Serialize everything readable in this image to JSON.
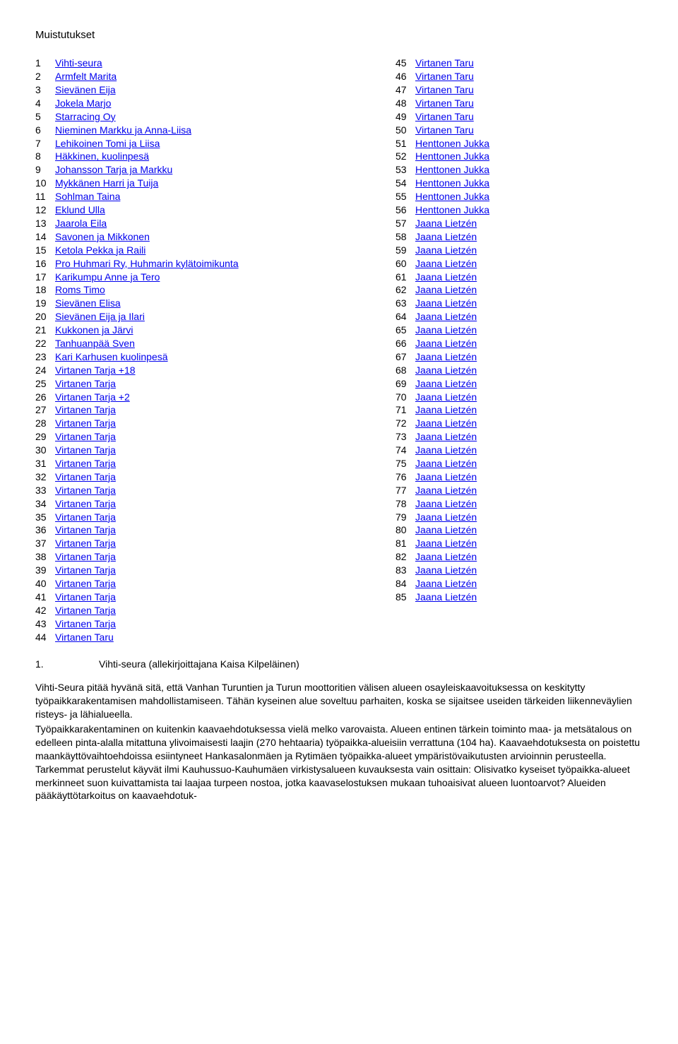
{
  "heading": "Muistutukset",
  "left_column": [
    {
      "n": "1",
      "name": "Vihti-seura"
    },
    {
      "n": "2",
      "name": "Armfelt Marita"
    },
    {
      "n": "3",
      "name": "Sievänen Eija"
    },
    {
      "n": "4",
      "name": "Jokela Marjo"
    },
    {
      "n": "5",
      "name": "Starracing Oy"
    },
    {
      "n": "6",
      "name": "Nieminen Markku ja Anna-Liisa"
    },
    {
      "n": "7",
      "name": "Lehikoinen Tomi ja Liisa"
    },
    {
      "n": "8",
      "name": "Häkkinen, kuolinpesä"
    },
    {
      "n": "9",
      "name": "Johansson Tarja ja Markku"
    },
    {
      "n": "10",
      "name": "Mykkänen Harri ja Tuija"
    },
    {
      "n": "11",
      "name": "Sohlman Taina"
    },
    {
      "n": "12",
      "name": "Eklund Ulla"
    },
    {
      "n": "13",
      "name": "Jaarola Eila"
    },
    {
      "n": "14",
      "name": "Savonen ja Mikkonen"
    },
    {
      "n": "15",
      "name": "Ketola Pekka ja Raili"
    },
    {
      "n": "16",
      "name": "Pro Huhmari Ry, Huhmarin kylätoimikunta"
    },
    {
      "n": "17",
      "name": "Karikumpu Anne ja Tero"
    },
    {
      "n": "18",
      "name": "Roms Timo"
    },
    {
      "n": "19",
      "name": "Sievänen Elisa"
    },
    {
      "n": "20",
      "name": "Sievänen Eija ja Ilari"
    },
    {
      "n": "21",
      "name": "Kukkonen ja Järvi"
    },
    {
      "n": "22",
      "name": "Tanhuanpää Sven"
    },
    {
      "n": "23",
      "name": "Kari Karhusen kuolinpesä"
    },
    {
      "n": "24",
      "name": "Virtanen Tarja +18"
    },
    {
      "n": "25",
      "name": "Virtanen Tarja"
    },
    {
      "n": "26",
      "name": "Virtanen Tarja +2"
    },
    {
      "n": "27",
      "name": "Virtanen Tarja"
    },
    {
      "n": "28",
      "name": "Virtanen Tarja"
    },
    {
      "n": "29",
      "name": "Virtanen Tarja"
    },
    {
      "n": "30",
      "name": "Virtanen Tarja"
    },
    {
      "n": "31",
      "name": "Virtanen Tarja"
    },
    {
      "n": "32",
      "name": "Virtanen Tarja"
    },
    {
      "n": "33",
      "name": "Virtanen Tarja"
    },
    {
      "n": "34",
      "name": "Virtanen Tarja"
    },
    {
      "n": "35",
      "name": "Virtanen Tarja"
    },
    {
      "n": "36",
      "name": "Virtanen Tarja"
    },
    {
      "n": "37",
      "name": "Virtanen Tarja"
    },
    {
      "n": "38",
      "name": "Virtanen Tarja"
    },
    {
      "n": "39",
      "name": "Virtanen Tarja"
    },
    {
      "n": "40",
      "name": "Virtanen Tarja"
    },
    {
      "n": "41",
      "name": "Virtanen Tarja"
    },
    {
      "n": "42",
      "name": "Virtanen Tarja"
    },
    {
      "n": "43",
      "name": "Virtanen Tarja"
    },
    {
      "n": "44",
      "name": "Virtanen Taru"
    }
  ],
  "right_column": [
    {
      "n": "45",
      "name": "Virtanen Taru"
    },
    {
      "n": "46",
      "name": "Virtanen Taru"
    },
    {
      "n": "47",
      "name": "Virtanen Taru"
    },
    {
      "n": "48",
      "name": "Virtanen Taru"
    },
    {
      "n": "49",
      "name": "Virtanen Taru"
    },
    {
      "n": "50",
      "name": "Virtanen Taru"
    },
    {
      "n": "51",
      "name": "Henttonen Jukka"
    },
    {
      "n": "52",
      "name": "Henttonen Jukka"
    },
    {
      "n": "53",
      "name": "Henttonen Jukka"
    },
    {
      "n": "54",
      "name": "Henttonen Jukka"
    },
    {
      "n": "55",
      "name": "Henttonen Jukka"
    },
    {
      "n": "56",
      "name": "Henttonen Jukka"
    },
    {
      "n": "57",
      "name": "Jaana Lietzén"
    },
    {
      "n": "58",
      "name": "Jaana Lietzén"
    },
    {
      "n": "59",
      "name": "Jaana Lietzén"
    },
    {
      "n": "60",
      "name": "Jaana Lietzén"
    },
    {
      "n": "61",
      "name": "Jaana Lietzén"
    },
    {
      "n": "62",
      "name": "Jaana Lietzén"
    },
    {
      "n": "63",
      "name": "Jaana Lietzén"
    },
    {
      "n": "64",
      "name": "Jaana Lietzén"
    },
    {
      "n": "65",
      "name": "Jaana Lietzén"
    },
    {
      "n": "66",
      "name": "Jaana Lietzén"
    },
    {
      "n": "67",
      "name": "Jaana Lietzén"
    },
    {
      "n": "68",
      "name": "Jaana Lietzén"
    },
    {
      "n": "69",
      "name": "Jaana Lietzén"
    },
    {
      "n": "70",
      "name": "Jaana Lietzén"
    },
    {
      "n": "71",
      "name": "Jaana Lietzén"
    },
    {
      "n": "72",
      "name": "Jaana Lietzén"
    },
    {
      "n": "73",
      "name": "Jaana Lietzén"
    },
    {
      "n": "74",
      "name": "Jaana Lietzén"
    },
    {
      "n": "75",
      "name": "Jaana Lietzén"
    },
    {
      "n": "76",
      "name": "Jaana Lietzén"
    },
    {
      "n": "77",
      "name": "Jaana Lietzén"
    },
    {
      "n": "78",
      "name": "Jaana Lietzén"
    },
    {
      "n": "79",
      "name": "Jaana Lietzén"
    },
    {
      "n": "80",
      "name": "Jaana Lietzén"
    },
    {
      "n": "81",
      "name": "Jaana Lietzén"
    },
    {
      "n": "82",
      "name": "Jaana Lietzén"
    },
    {
      "n": "83",
      "name": "Jaana Lietzén"
    },
    {
      "n": "84",
      "name": "Jaana Lietzén"
    },
    {
      "n": "85",
      "name": "Jaana Lietzén"
    }
  ],
  "section": {
    "num": "1.",
    "title": "Vihti-seura (allekirjoittajana Kaisa Kilpeläinen)"
  },
  "paragraphs": [
    "Vihti-Seura pitää hyvänä sitä, että Vanhan Turuntien ja Turun moottoritien välisen alueen osayleiskaavoituksessa on keskitytty työpaikkarakentamisen mahdollistamiseen. Tähän kyseinen alue soveltuu parhaiten, koska se sijaitsee useiden tärkeiden liikenneväylien risteys- ja lähialueella.",
    "Työpaikkarakentaminen on kuitenkin kaavaehdotuksessa vielä melko varovaista. Alueen entinen tärkein toiminto maa- ja metsätalous on edelleen pinta-alalla mitattuna ylivoimaisesti laajin (270 hehtaaria) työpaikka-alueisiin verrattuna (104 ha). Kaavaehdotuksesta on poistettu maankäyttövaihtoehdoissa esiintyneet Hankasalonmäen ja Rytimäen työpaikka-alueet ympäristövaikutusten arvioinnin perusteella. Tarkemmat perustelut käyvät ilmi Kauhussuo-Kauhumäen virkistysalueen kuvauksesta vain osittain: Olisivatko kyseiset työpaikka-alueet merkinneet suon kuivattamista tai laajaa turpeen nostoa, jotka kaavaselostuksen mukaan tuhoaisivat alueen luontoarvot? Alueiden pääkäyttötarkoitus on kaavaehdotuk-"
  ]
}
